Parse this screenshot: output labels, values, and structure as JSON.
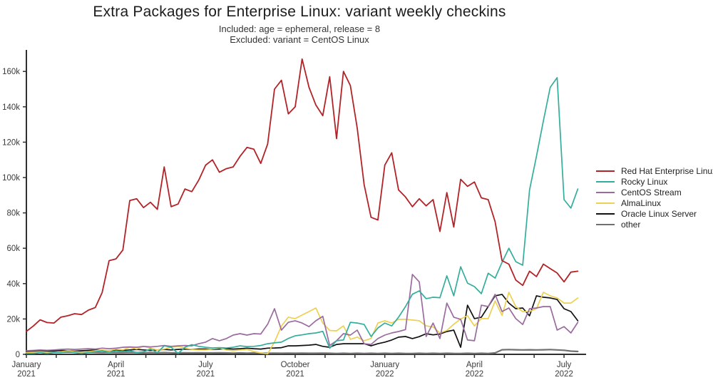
{
  "header": {
    "title": "Extra Packages for Enterprise Linux: variant weekly checkins",
    "subtitle_line1": "Included: age = ephemeral, release = 8",
    "subtitle_line2": "Excluded: variant = CentOS Linux"
  },
  "colors": {
    "axis": "#2f2f2f",
    "tick_text": "#3b3b3b"
  },
  "chart_data": {
    "type": "line",
    "title": "Extra Packages for Enterprise Linux: variant weekly checkins",
    "xlabel": "",
    "ylabel": "",
    "x_unit": "week-index (weekly data, Jan 2021 to mid-July 2022)",
    "y_unit": "checkins",
    "ylim_k": [
      0,
      170
    ],
    "y_ticks_k": [
      0,
      20,
      40,
      60,
      80,
      100,
      120,
      140,
      160
    ],
    "y_tick_labels": [
      "0",
      "20k",
      "40k",
      "60k",
      "80k",
      "100k",
      "120k",
      "140k",
      "160k"
    ],
    "x_weeks_total": 80,
    "x_months_total": 18,
    "x_tick_labels": [
      {
        "month": "January",
        "year": "2021",
        "month_index": 0
      },
      {
        "month": "April",
        "year": "2021",
        "month_index": 3
      },
      {
        "month": "July",
        "year": "2021",
        "month_index": 6
      },
      {
        "month": "October",
        "year": "2021",
        "month_index": 9
      },
      {
        "month": "January",
        "year": "2022",
        "month_index": 12
      },
      {
        "month": "April",
        "year": "2022",
        "month_index": 15
      },
      {
        "month": "July",
        "year": "2022",
        "month_index": 18
      }
    ],
    "grid": false,
    "legend_position": "right",
    "series": [
      {
        "name": "Red Hat Enterprise Linux",
        "color": "#b22328",
        "width": 1.8,
        "values_k": [
          13,
          16,
          19.5,
          18,
          17.7,
          21,
          21.8,
          23,
          22.5,
          25,
          26.5,
          35,
          53,
          54,
          59,
          87,
          88,
          83,
          86,
          82,
          106,
          83.5,
          85,
          93.5,
          92,
          98.5,
          107,
          110,
          103,
          105,
          106,
          112,
          117,
          116,
          108,
          119,
          150,
          155,
          136,
          140,
          167,
          151,
          141,
          135,
          157,
          122,
          160,
          152,
          128,
          96,
          77.5,
          76,
          107,
          114,
          93,
          89,
          83.5,
          88,
          84,
          87.5,
          69.5,
          91.5,
          72,
          99,
          95,
          97.5,
          88.5,
          87.5,
          75,
          53,
          51,
          42,
          39,
          47,
          44,
          51,
          48.5,
          46,
          41,
          46.5,
          47
        ]
      },
      {
        "name": "Rocky Linux",
        "color": "#34ae9c",
        "width": 1.7,
        "values_k": [
          0.5,
          0.5,
          1,
          0.5,
          1,
          1,
          1.5,
          1,
          0.5,
          1,
          1.5,
          2,
          1,
          2,
          1.5,
          2,
          1,
          1.5,
          3,
          1,
          4.8,
          4,
          0.5,
          4,
          5.5,
          4.5,
          4,
          3.6,
          3.8,
          3.6,
          4,
          4.8,
          4.4,
          4.5,
          5,
          6,
          6.5,
          6.9,
          9,
          10.5,
          11,
          11.7,
          12.1,
          13,
          3.5,
          7.7,
          8.1,
          18.1,
          17.7,
          16.9,
          10.1,
          14.9,
          17.7,
          16.1,
          21,
          27,
          34,
          35.9,
          31.5,
          32.3,
          32,
          44.4,
          33.1,
          49.5,
          40.3,
          38.3,
          34.3,
          45.9,
          43.1,
          52,
          60,
          52.4,
          50.4,
          93,
          112,
          132,
          151,
          156.5,
          87.5,
          82.7,
          93.5
        ]
      },
      {
        "name": "CentOS Stream",
        "color": "#9a6b9e",
        "width": 1.7,
        "values_k": [
          2,
          2.2,
          2.5,
          2.3,
          2.5,
          2.8,
          3,
          2.8,
          3,
          3.2,
          3,
          3.5,
          3.2,
          3.5,
          4,
          4.2,
          4,
          4.5,
          4.2,
          4.5,
          5,
          4.5,
          4.8,
          5,
          4.8,
          6,
          6.9,
          8.9,
          7.7,
          8.9,
          10.9,
          11.7,
          10.9,
          11.7,
          11.5,
          17,
          25.8,
          13.7,
          18.1,
          19,
          17.7,
          15.7,
          19,
          21.5,
          5,
          7.7,
          11.7,
          10.9,
          13.7,
          6,
          5.6,
          8.9,
          10.9,
          12.1,
          12.9,
          14,
          45.2,
          41,
          10.1,
          17.7,
          8.9,
          29,
          21,
          19.8,
          8.1,
          7.7,
          27.8,
          27,
          33.9,
          24.2,
          26.2,
          20.2,
          16.9,
          25.8,
          26.2,
          27,
          27,
          13.7,
          15.7,
          12.1,
          18.1
        ]
      },
      {
        "name": "AlmaLinux",
        "color": "#ecd153",
        "width": 1.7,
        "values_k": [
          1,
          1.2,
          1.5,
          1.2,
          1,
          1.5,
          2,
          1.5,
          1.2,
          1.5,
          2,
          2.5,
          2,
          3,
          2.5,
          4,
          3,
          4.5,
          3.5,
          2.5,
          3,
          4,
          4.5,
          3.5,
          2.8,
          2.5,
          2.5,
          3,
          3.6,
          2.5,
          2,
          2.5,
          2.8,
          1.6,
          0.8,
          0.3,
          7,
          16,
          21,
          20.2,
          22.2,
          24.2,
          26.2,
          17.7,
          13.5,
          13.3,
          16.1,
          8.5,
          9.7,
          7.7,
          9,
          17.7,
          19,
          17.7,
          19.8,
          19.8,
          19.4,
          19,
          16.1,
          15.5,
          12.1,
          13.5,
          17,
          20,
          21.8,
          16.1,
          20.2,
          20.2,
          30.2,
          22,
          35.1,
          27,
          24.2,
          24.2,
          25.8,
          35.1,
          33.1,
          31.9,
          29,
          29,
          31.9
        ]
      },
      {
        "name": "Oracle Linux Server",
        "color": "#111111",
        "width": 1.7,
        "values_k": [
          1.5,
          1.8,
          2,
          1.8,
          2,
          2.2,
          2,
          1.8,
          2,
          2.2,
          2.5,
          2.2,
          2,
          2.5,
          2.2,
          2.5,
          2.8,
          2.5,
          2.2,
          2.5,
          2.8,
          2.5,
          2.8,
          3,
          2.8,
          3,
          3,
          2.8,
          3,
          3.2,
          3,
          3.2,
          3.5,
          3.2,
          3,
          3.5,
          3.6,
          3.8,
          4.8,
          4.8,
          5,
          5.2,
          5.6,
          4.5,
          4,
          5.6,
          6,
          6,
          6,
          6,
          4.8,
          6,
          6.9,
          8.1,
          9.7,
          10.1,
          8.9,
          10,
          11.7,
          11,
          11.5,
          12.9,
          13.7,
          4,
          27.8,
          20.2,
          21,
          27,
          33.1,
          33.9,
          29,
          25.8,
          26.2,
          21.8,
          33.1,
          32.3,
          31.9,
          31,
          25.8,
          24.2,
          19
        ]
      },
      {
        "name": "other",
        "color": "#707070",
        "width": 2.2,
        "values_k": [
          1.2,
          1.3,
          1.2,
          1.4,
          1.3,
          1.2,
          1.3,
          1.2,
          1.1,
          1.2,
          1.1,
          1,
          1.1,
          1,
          1,
          1.1,
          1,
          0.9,
          1,
          0.9,
          1,
          0.9,
          0.8,
          0.9,
          0.8,
          0.9,
          0.8,
          0.8,
          0.9,
          0.8,
          0.7,
          0.8,
          0.7,
          0.8,
          0.7,
          0.6,
          0.7,
          0.6,
          0.7,
          0.6,
          0.7,
          0.6,
          0.6,
          0.7,
          0.6,
          0.5,
          0.6,
          0.5,
          0.6,
          0.5,
          0.6,
          0.5,
          0.6,
          0.5,
          0.6,
          0.5,
          0.5,
          0.6,
          0.5,
          0.6,
          0.5,
          0.6,
          0.5,
          0.5,
          0.6,
          0.5,
          0.6,
          0.5,
          0.8,
          2.6,
          2.7,
          2.6,
          2.5,
          2.6,
          2.5,
          2.6,
          2.7,
          2.5,
          2.3,
          1.8,
          1.6
        ]
      }
    ]
  },
  "legend": {
    "entries": [
      {
        "label": "Red Hat Enterprise Linux",
        "color": "#b22328"
      },
      {
        "label": "Rocky Linux",
        "color": "#34ae9c"
      },
      {
        "label": "CentOS Stream",
        "color": "#9a6b9e"
      },
      {
        "label": "AlmaLinux",
        "color": "#ecd153"
      },
      {
        "label": "Oracle Linux Server",
        "color": "#111111"
      },
      {
        "label": "other",
        "color": "#707070"
      }
    ]
  }
}
